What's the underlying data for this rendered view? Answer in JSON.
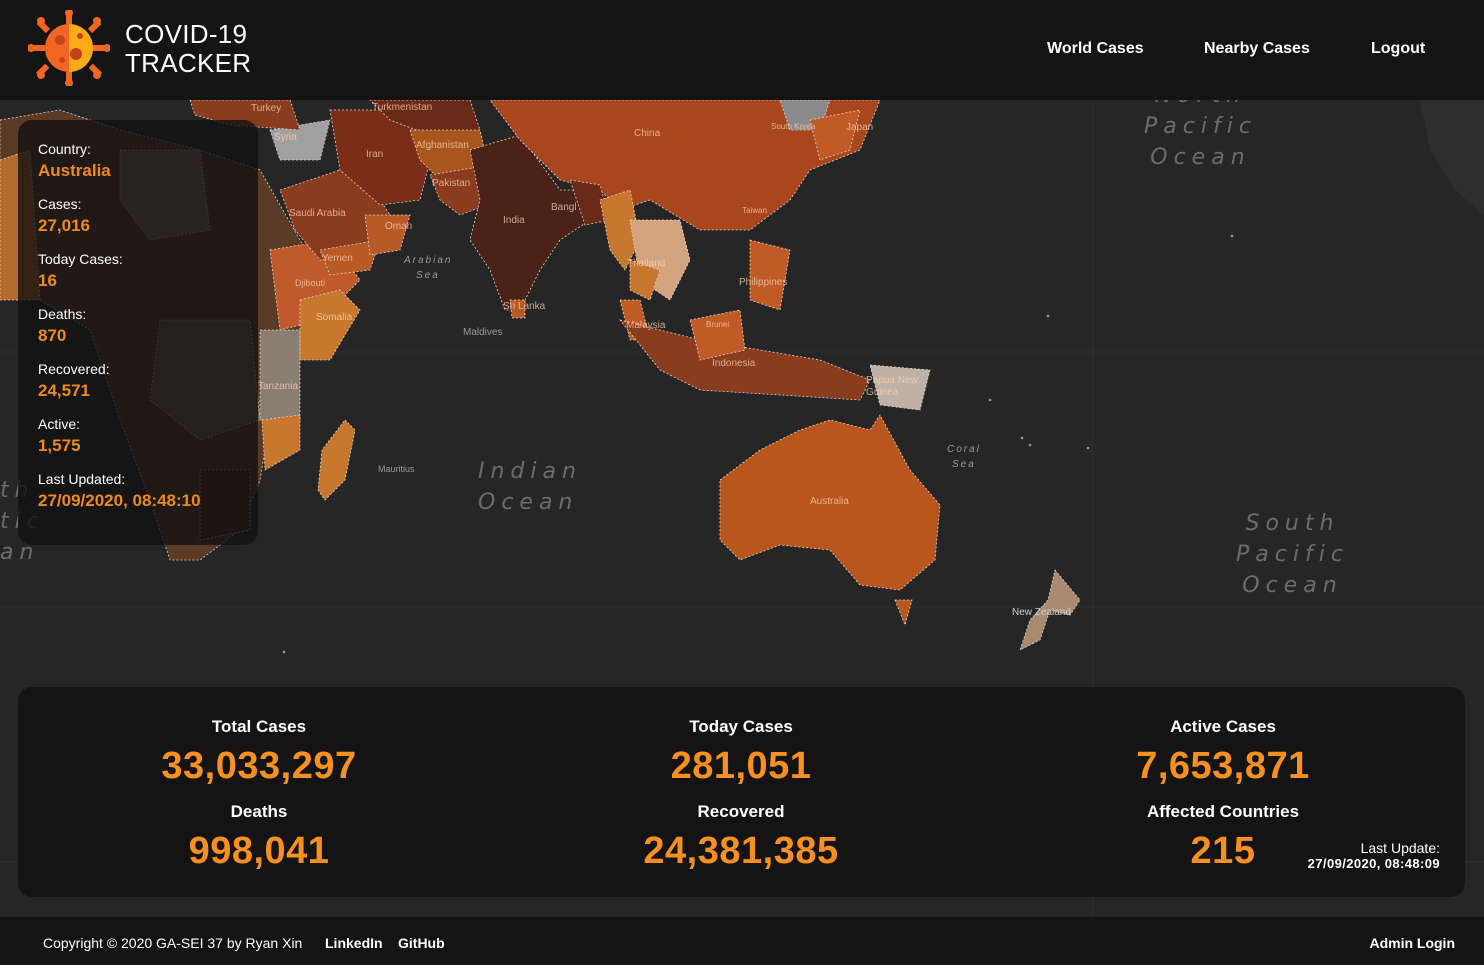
{
  "header": {
    "brand_line1": "COVID-19",
    "brand_line2": "TRACKER",
    "nav": {
      "world": "World Cases",
      "nearby": "Nearby Cases",
      "logout": "Logout"
    }
  },
  "map": {
    "oceans": {
      "north_pacific": [
        "North",
        "Pacific",
        "Ocean"
      ],
      "indian": [
        "Indian",
        "Ocean"
      ],
      "south_pacific": [
        "South",
        "Pacific",
        "Ocean"
      ],
      "atlantic_fragment": [
        "th",
        "tic",
        "an"
      ]
    },
    "seas": {
      "arabian_1": "Arabian",
      "arabian_2": "Sea",
      "coral_1": "Coral",
      "coral_2": "Sea"
    },
    "places": {
      "maldives": "Maldives",
      "mauritius": "Mauritius"
    },
    "countries": {
      "turkey": "Turkey",
      "turkmenistan": "Turkmenistan",
      "iran": "Iran",
      "afghanistan": "Afghanistan",
      "pakistan": "Pakistan",
      "china": "China",
      "south_korea": "South Korea",
      "japan": "Japan",
      "india": "India",
      "bangladesh": "Bangl",
      "taiwan": "Taiwan",
      "saudi": "Saudi Arabia",
      "yemen": "Yemen",
      "oman": "Oman",
      "syria": "Syria",
      "djibouti": "Djibouti",
      "somalia": "Somalia",
      "tanzania": "Tanzania",
      "thailand": "Thailand",
      "philippines": "Philippines",
      "malaysia": "Malaysia",
      "brunei": "Brunei",
      "indonesia": "Indonesia",
      "sri_lanka": "Sri Lanka",
      "png": "Papua New Guinea",
      "australia": "Australia",
      "new_zealand": "New Zealand"
    }
  },
  "country_panel": {
    "country_label": "Country:",
    "country_value": "Australia",
    "cases_label": "Cases:",
    "cases_value": "27,016",
    "today_label": "Today Cases:",
    "today_value": "16",
    "deaths_label": "Deaths:",
    "deaths_value": "870",
    "recovered_label": "Recovered:",
    "recovered_value": "24,571",
    "active_label": "Active:",
    "active_value": "1,575",
    "updated_label": "Last Updated:",
    "updated_value": "27/09/2020, 08:48:10"
  },
  "stats": {
    "total_cases_label": "Total Cases",
    "total_cases": "33,033,297",
    "today_cases_label": "Today Cases",
    "today_cases": "281,051",
    "active_cases_label": "Active Cases",
    "active_cases": "7,653,871",
    "deaths_label": "Deaths",
    "deaths": "998,041",
    "recovered_label": "Recovered",
    "recovered": "24,381,385",
    "affected_label": "Affected Countries",
    "affected": "215",
    "last_update_label": "Last Update:",
    "last_update": "27/09/2020, 08:48:09"
  },
  "footer": {
    "copyright": "Copyright © 2020 GA-SEI 37 by Ryan Xin",
    "linkedin": "LinkedIn",
    "github": "GitHub",
    "admin": "Admin Login"
  },
  "colors": {
    "accent": "#f7901e",
    "header_bg": "#141414",
    "map_bg": "#262626"
  }
}
